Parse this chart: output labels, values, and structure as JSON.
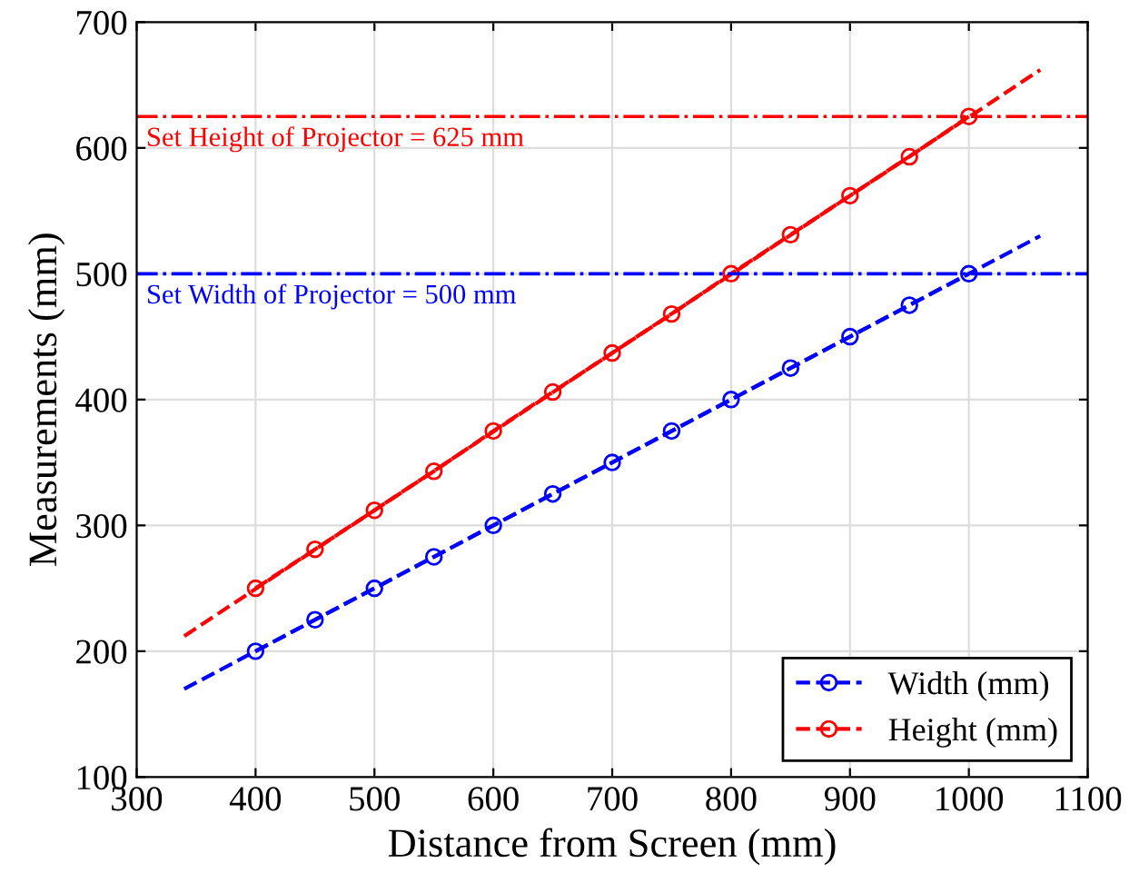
{
  "chart_data": {
    "type": "line",
    "xlabel": "Distance from Screen (mm)",
    "ylabel": "Measurements (mm)",
    "xlim": [
      300,
      1100
    ],
    "xticks": [
      300,
      400,
      500,
      600,
      700,
      800,
      900,
      1000,
      1100
    ],
    "ylim": [
      100,
      700
    ],
    "yticks": [
      100,
      200,
      300,
      400,
      500,
      600,
      700
    ],
    "grid": true,
    "legend": "bottom right",
    "marker": "circle",
    "line_style": "dashed",
    "series": [
      {
        "name": "Width (mm)",
        "color": "#0000ff",
        "x": [
          400,
          450,
          500,
          550,
          600,
          650,
          700,
          750,
          800,
          850,
          900,
          950,
          1000
        ],
        "values": [
          200,
          225,
          250,
          275,
          300,
          325,
          350,
          375,
          400,
          425,
          450,
          475,
          500
        ]
      },
      {
        "name": "Height (mm)",
        "color": "#ff0000",
        "x": [
          400,
          450,
          500,
          550,
          600,
          650,
          700,
          750,
          800,
          850,
          900,
          950,
          1000
        ],
        "values": [
          250,
          281,
          312,
          343,
          375,
          406,
          437,
          468,
          500,
          531,
          562,
          593,
          625
        ]
      },
      {
        "color": "#0000ff",
        "marker": "none",
        "x": [
          340,
          1060
        ],
        "values": [
          170,
          530
        ]
      },
      {
        "color": "#ff0000",
        "marker": "none",
        "x": [
          340,
          1060
        ],
        "values": [
          212,
          662
        ]
      }
    ],
    "ref_lines": [
      {
        "axis": "y",
        "value": 625,
        "label": "Set Height of Projector = 625 mm",
        "color": "#ff0000",
        "line_style": "dashdot"
      },
      {
        "axis": "y",
        "value": 500,
        "label": "Set Width of Projector = 500 mm",
        "color": "#0000ff",
        "line_style": "dashdot"
      }
    ]
  }
}
